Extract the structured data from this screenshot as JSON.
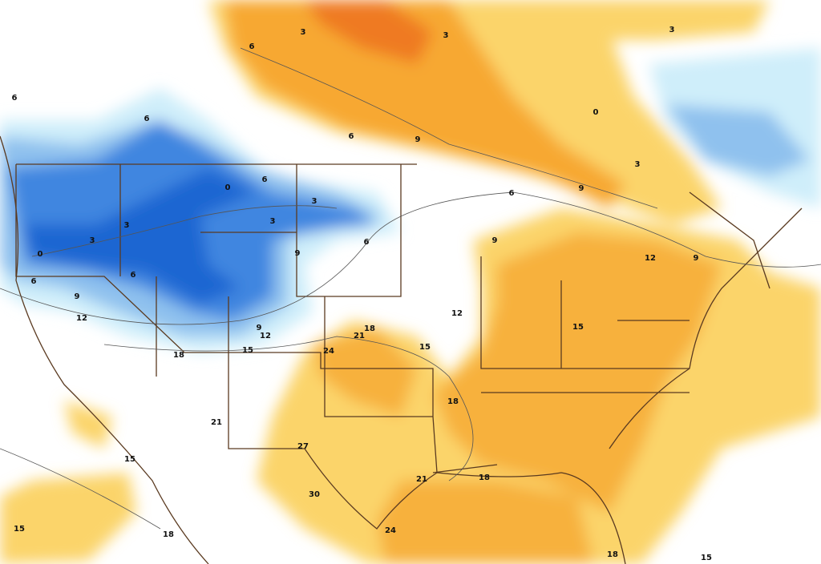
{
  "contour_labels": [
    3,
    3,
    3,
    6,
    6,
    6,
    6,
    0,
    9,
    3,
    9,
    6,
    0,
    3,
    6,
    3,
    3,
    3,
    0,
    6,
    9,
    9,
    12,
    9,
    6,
    6,
    9,
    12,
    12,
    18,
    21,
    9,
    12,
    15,
    24,
    15,
    15,
    18,
    18,
    21,
    27,
    15,
    18,
    21,
    30,
    15,
    18,
    24,
    18,
    15
  ]
}
